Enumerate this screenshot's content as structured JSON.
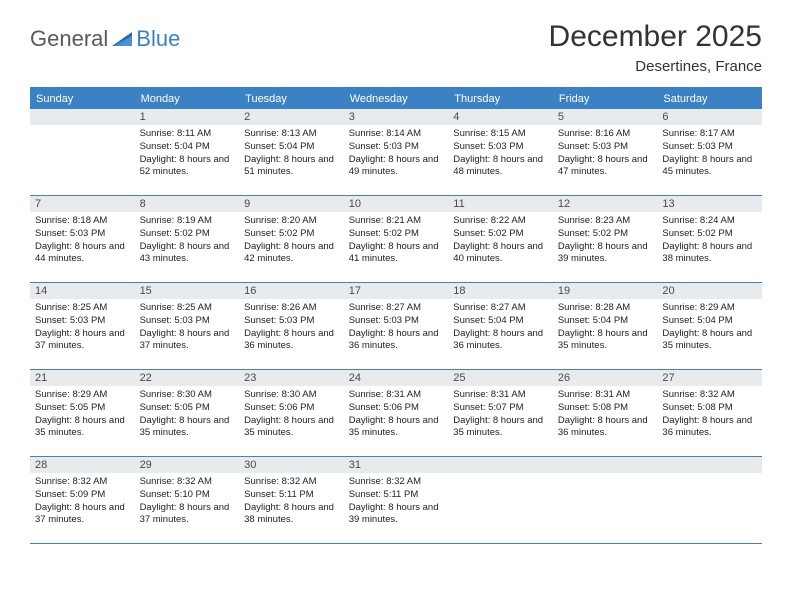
{
  "logo": {
    "general": "General",
    "blue": "Blue"
  },
  "title": "December 2025",
  "subtitle": "Desertines, France",
  "colors": {
    "header_bar": "#3b82c4",
    "daynum_bg": "#e8ebee",
    "text": "#333333",
    "rule": "#4a7fb0"
  },
  "weekdays": [
    "Sunday",
    "Monday",
    "Tuesday",
    "Wednesday",
    "Thursday",
    "Friday",
    "Saturday"
  ],
  "month_start_index": 1,
  "days": [
    {
      "n": 1,
      "sr": "8:11 AM",
      "ss": "5:04 PM",
      "dl": "8 hours and 52 minutes."
    },
    {
      "n": 2,
      "sr": "8:13 AM",
      "ss": "5:04 PM",
      "dl": "8 hours and 51 minutes."
    },
    {
      "n": 3,
      "sr": "8:14 AM",
      "ss": "5:03 PM",
      "dl": "8 hours and 49 minutes."
    },
    {
      "n": 4,
      "sr": "8:15 AM",
      "ss": "5:03 PM",
      "dl": "8 hours and 48 minutes."
    },
    {
      "n": 5,
      "sr": "8:16 AM",
      "ss": "5:03 PM",
      "dl": "8 hours and 47 minutes."
    },
    {
      "n": 6,
      "sr": "8:17 AM",
      "ss": "5:03 PM",
      "dl": "8 hours and 45 minutes."
    },
    {
      "n": 7,
      "sr": "8:18 AM",
      "ss": "5:03 PM",
      "dl": "8 hours and 44 minutes."
    },
    {
      "n": 8,
      "sr": "8:19 AM",
      "ss": "5:02 PM",
      "dl": "8 hours and 43 minutes."
    },
    {
      "n": 9,
      "sr": "8:20 AM",
      "ss": "5:02 PM",
      "dl": "8 hours and 42 minutes."
    },
    {
      "n": 10,
      "sr": "8:21 AM",
      "ss": "5:02 PM",
      "dl": "8 hours and 41 minutes."
    },
    {
      "n": 11,
      "sr": "8:22 AM",
      "ss": "5:02 PM",
      "dl": "8 hours and 40 minutes."
    },
    {
      "n": 12,
      "sr": "8:23 AM",
      "ss": "5:02 PM",
      "dl": "8 hours and 39 minutes."
    },
    {
      "n": 13,
      "sr": "8:24 AM",
      "ss": "5:02 PM",
      "dl": "8 hours and 38 minutes."
    },
    {
      "n": 14,
      "sr": "8:25 AM",
      "ss": "5:03 PM",
      "dl": "8 hours and 37 minutes."
    },
    {
      "n": 15,
      "sr": "8:25 AM",
      "ss": "5:03 PM",
      "dl": "8 hours and 37 minutes."
    },
    {
      "n": 16,
      "sr": "8:26 AM",
      "ss": "5:03 PM",
      "dl": "8 hours and 36 minutes."
    },
    {
      "n": 17,
      "sr": "8:27 AM",
      "ss": "5:03 PM",
      "dl": "8 hours and 36 minutes."
    },
    {
      "n": 18,
      "sr": "8:27 AM",
      "ss": "5:04 PM",
      "dl": "8 hours and 36 minutes."
    },
    {
      "n": 19,
      "sr": "8:28 AM",
      "ss": "5:04 PM",
      "dl": "8 hours and 35 minutes."
    },
    {
      "n": 20,
      "sr": "8:29 AM",
      "ss": "5:04 PM",
      "dl": "8 hours and 35 minutes."
    },
    {
      "n": 21,
      "sr": "8:29 AM",
      "ss": "5:05 PM",
      "dl": "8 hours and 35 minutes."
    },
    {
      "n": 22,
      "sr": "8:30 AM",
      "ss": "5:05 PM",
      "dl": "8 hours and 35 minutes."
    },
    {
      "n": 23,
      "sr": "8:30 AM",
      "ss": "5:06 PM",
      "dl": "8 hours and 35 minutes."
    },
    {
      "n": 24,
      "sr": "8:31 AM",
      "ss": "5:06 PM",
      "dl": "8 hours and 35 minutes."
    },
    {
      "n": 25,
      "sr": "8:31 AM",
      "ss": "5:07 PM",
      "dl": "8 hours and 35 minutes."
    },
    {
      "n": 26,
      "sr": "8:31 AM",
      "ss": "5:08 PM",
      "dl": "8 hours and 36 minutes."
    },
    {
      "n": 27,
      "sr": "8:32 AM",
      "ss": "5:08 PM",
      "dl": "8 hours and 36 minutes."
    },
    {
      "n": 28,
      "sr": "8:32 AM",
      "ss": "5:09 PM",
      "dl": "8 hours and 37 minutes."
    },
    {
      "n": 29,
      "sr": "8:32 AM",
      "ss": "5:10 PM",
      "dl": "8 hours and 37 minutes."
    },
    {
      "n": 30,
      "sr": "8:32 AM",
      "ss": "5:11 PM",
      "dl": "8 hours and 38 minutes."
    },
    {
      "n": 31,
      "sr": "8:32 AM",
      "ss": "5:11 PM",
      "dl": "8 hours and 39 minutes."
    }
  ],
  "labels": {
    "sunrise": "Sunrise:",
    "sunset": "Sunset:",
    "daylight": "Daylight:"
  }
}
